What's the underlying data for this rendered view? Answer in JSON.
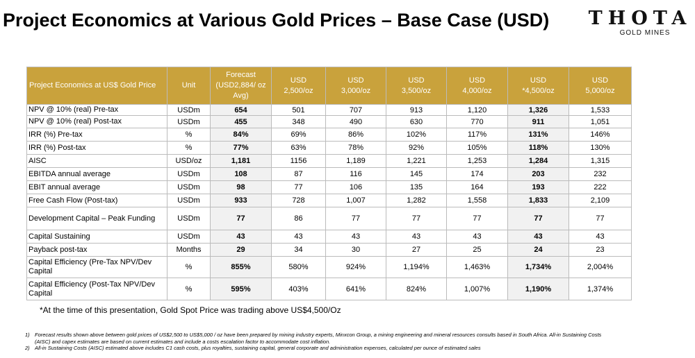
{
  "header": {
    "title": "Project Economics at Various Gold Prices – Base Case (USD)"
  },
  "logo": {
    "name": "THOTA",
    "sub": "GOLD MINES"
  },
  "table": {
    "columns": [
      [
        "Project Economics at US$ Gold Price"
      ],
      [
        "Unit"
      ],
      [
        "Forecast",
        "(USD2,884/ oz",
        "Avg)"
      ],
      [
        "USD",
        "2,500/oz"
      ],
      [
        "USD",
        "3,000/oz"
      ],
      [
        "USD",
        "3,500/oz"
      ],
      [
        "USD",
        "4,000/oz"
      ],
      [
        "USD",
        "*4,500/oz"
      ],
      [
        "USD",
        "5,000/oz"
      ]
    ],
    "rows": [
      [
        "NPV @ 10% (real) Pre-tax",
        "USDm",
        "654",
        "501",
        "707",
        "913",
        "1,120",
        "1,326",
        "1,533"
      ],
      [
        "NPV @ 10% (real) Post-tax",
        "USDm",
        "455",
        "348",
        "490",
        "630",
        "770",
        "911",
        "1,051"
      ],
      [
        "IRR (%) Pre-tax",
        "%",
        "84%",
        "69%",
        "86%",
        "102%",
        "117%",
        "131%",
        "146%"
      ],
      [
        "IRR (%) Post-tax",
        "%",
        "77%",
        "63%",
        "78%",
        "92%",
        "105%",
        "118%",
        "130%"
      ],
      [
        "AISC",
        "USD/oz",
        "1,181",
        "1156",
        "1,189",
        "1,221",
        "1,253",
        "1,284",
        "1,315"
      ],
      [
        "EBITDA annual average",
        "USDm",
        "108",
        "87",
        "116",
        "145",
        "174",
        "203",
        "232"
      ],
      [
        "EBIT annual average",
        "USDm",
        "98",
        "77",
        "106",
        "135",
        "164",
        "193",
        "222"
      ],
      [
        "Free Cash Flow (Post-tax)",
        "USDm",
        "933",
        "728",
        "1,007",
        "1,282",
        "1,558",
        "1,833",
        "2,109"
      ],
      [
        "Development Capital – Peak Funding",
        "USDm",
        "77",
        "86",
        "77",
        "77",
        "77",
        "77",
        "77"
      ],
      [
        "Capital Sustaining",
        "USDm",
        "43",
        "43",
        "43",
        "43",
        "43",
        "43",
        "43"
      ],
      [
        "Payback post-tax",
        "Months",
        "29",
        "34",
        "30",
        "27",
        "25",
        "24",
        "23"
      ],
      [
        "Capital Efficiency (Pre-Tax NPV/Dev Capital",
        "%",
        "855%",
        "580%",
        "924%",
        "1,194%",
        "1,463%",
        "1,734%",
        "2,004%"
      ],
      [
        "Capital Efficiency (Post-Tax NPV/Dev Capital",
        "%",
        "595%",
        "403%",
        "641%",
        "824%",
        "1,007%",
        "1,190%",
        "1,374%"
      ]
    ]
  },
  "note": "*At the time of this presentation, Gold Spot Price was trading above US$4,500/Oz",
  "footnotes": [
    [
      "1)",
      "Forecast results shown above between gold prices of US$2,500 to US$5,000 / oz have been prepared by mining industry experts, Minxcon Group, a mining engineering and mineral resources consults based in South Africa. All-in Sustaining Costs (AISC) and capex estimates are based on current estimates and include a costs escalation factor to accommodate cost inflation."
    ],
    [
      "2)",
      "All-in Sustaining Costs (AISC) estimated above includes C1 cash costs, plus royalties, sustaining capital, general corporate and administration expenses, calculated per ounce of estimated sales"
    ]
  ]
}
